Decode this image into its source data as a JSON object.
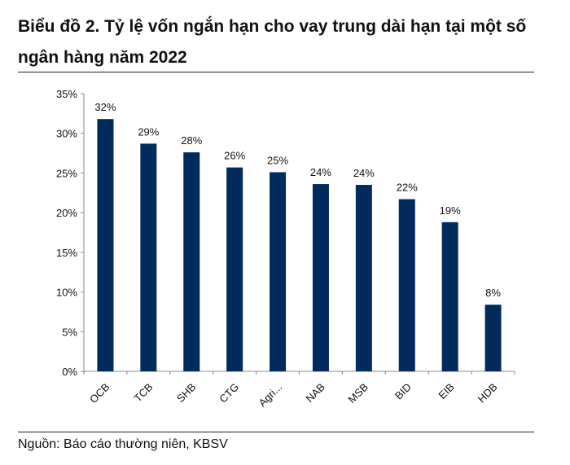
{
  "chart_data": {
    "type": "bar",
    "title": "Biểu đồ 2. Tỷ lệ vốn ngắn hạn cho vay trung dài hạn tại một số ngân hàng năm 2022",
    "categories": [
      "OCB",
      "TCB",
      "SHB",
      "CTG",
      "Agri...",
      "NAB",
      "MSB",
      "BID",
      "EIB",
      "HDB"
    ],
    "values": [
      31.8,
      28.7,
      27.6,
      25.7,
      25.1,
      23.6,
      23.5,
      21.7,
      18.8,
      8.4
    ],
    "data_labels": [
      "32%",
      "29%",
      "28%",
      "26%",
      "25%",
      "24%",
      "24%",
      "22%",
      "19%",
      "8%"
    ],
    "ylim": [
      0,
      35
    ],
    "yticks": [
      "0%",
      "5%",
      "10%",
      "15%",
      "20%",
      "25%",
      "30%",
      "35%"
    ],
    "xlabel": "",
    "ylabel": "",
    "grid": false,
    "bar_color": "#002b5c"
  },
  "source": "Nguồn: Báo cáo thường niên, KBSV"
}
